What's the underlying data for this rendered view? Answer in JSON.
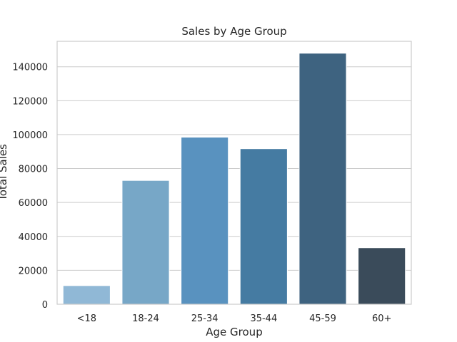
{
  "chart_data": {
    "type": "bar",
    "title": "Sales by Age Group",
    "xlabel": "Age Group",
    "ylabel": "Total Sales",
    "categories": [
      "<18",
      "18-24",
      "25-34",
      "35-44",
      "45-59",
      "60+"
    ],
    "values": [
      11000,
      73000,
      98500,
      91700,
      148000,
      33300
    ],
    "ylim": [
      0,
      155000
    ],
    "yticks": [
      0,
      20000,
      40000,
      60000,
      80000,
      100000,
      120000,
      140000
    ],
    "ytick_labels": [
      "0",
      "20000",
      "40000",
      "60000",
      "80000",
      "100000",
      "120000",
      "140000"
    ],
    "grid": "horizontal",
    "colors": [
      "#90b8d6",
      "#77a7c7",
      "#5992bf",
      "#457ba2",
      "#3e6380",
      "#3a4b5a"
    ]
  }
}
